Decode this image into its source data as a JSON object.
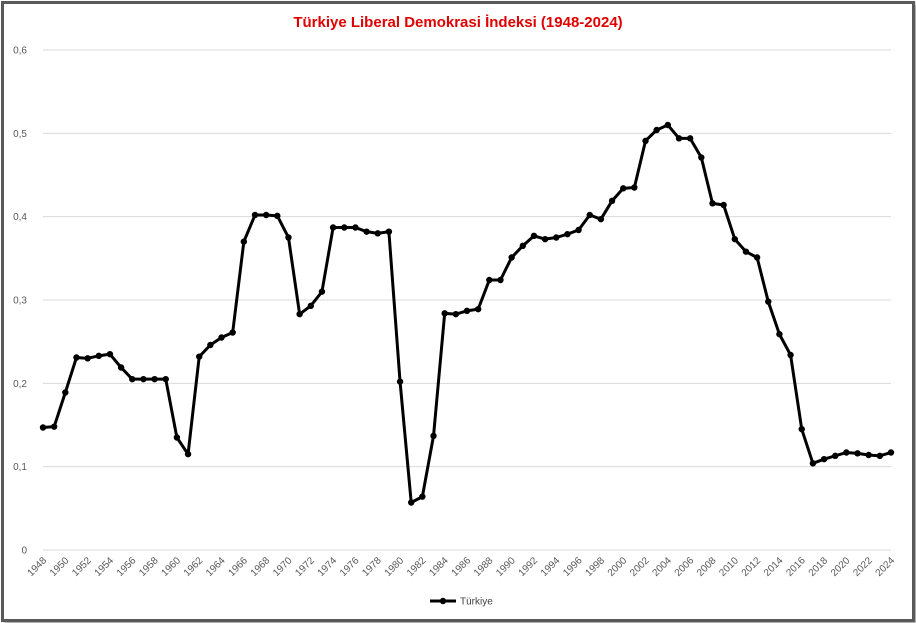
{
  "chart_data": {
    "type": "line",
    "title": "Türkiye Liberal Demokrasi İndeksi (1948-2024)",
    "xlabel": "",
    "ylabel": "",
    "ylim": [
      0,
      0.6
    ],
    "yticks": [
      "0",
      "0,1",
      "0,2",
      "0,3",
      "0,4",
      "0,5",
      "0,6"
    ],
    "xticks": [
      "1948",
      "1950",
      "1952",
      "1954",
      "1956",
      "1958",
      "1960",
      "1962",
      "1964",
      "1966",
      "1968",
      "1970",
      "1972",
      "1974",
      "1976",
      "1978",
      "1980",
      "1982",
      "1984",
      "1986",
      "1988",
      "1990",
      "1992",
      "1994",
      "1996",
      "1998",
      "2000",
      "2002",
      "2004",
      "2006",
      "2008",
      "2010",
      "2012",
      "2014",
      "2016",
      "2018",
      "2020",
      "2022",
      "2024"
    ],
    "grid": true,
    "legend_position": "bottom",
    "line_color": "#000000",
    "x": [
      1948,
      1949,
      1950,
      1951,
      1952,
      1953,
      1954,
      1955,
      1956,
      1957,
      1958,
      1959,
      1960,
      1961,
      1962,
      1963,
      1964,
      1965,
      1966,
      1967,
      1968,
      1969,
      1970,
      1971,
      1972,
      1973,
      1974,
      1975,
      1976,
      1977,
      1978,
      1979,
      1980,
      1981,
      1982,
      1983,
      1984,
      1985,
      1986,
      1987,
      1988,
      1989,
      1990,
      1991,
      1992,
      1993,
      1994,
      1995,
      1996,
      1997,
      1998,
      1999,
      2000,
      2001,
      2002,
      2003,
      2004,
      2005,
      2006,
      2007,
      2008,
      2009,
      2010,
      2011,
      2012,
      2013,
      2014,
      2015,
      2016,
      2017,
      2018,
      2019,
      2020,
      2021,
      2022,
      2023,
      2024
    ],
    "series": [
      {
        "name": "Türkiye",
        "values": [
          0.147,
          0.148,
          0.189,
          0.231,
          0.23,
          0.233,
          0.235,
          0.219,
          0.205,
          0.205,
          0.205,
          0.205,
          0.135,
          0.115,
          0.232,
          0.246,
          0.255,
          0.261,
          0.37,
          0.402,
          0.402,
          0.401,
          0.375,
          0.283,
          0.293,
          0.31,
          0.387,
          0.387,
          0.387,
          0.382,
          0.38,
          0.382,
          0.202,
          0.057,
          0.064,
          0.137,
          0.284,
          0.283,
          0.287,
          0.289,
          0.324,
          0.324,
          0.351,
          0.365,
          0.377,
          0.373,
          0.375,
          0.379,
          0.384,
          0.402,
          0.397,
          0.419,
          0.434,
          0.435,
          0.491,
          0.504,
          0.51,
          0.494,
          0.494,
          0.471,
          0.416,
          0.414,
          0.373,
          0.358,
          0.351,
          0.298,
          0.259,
          0.234,
          0.145,
          0.104,
          0.109,
          0.113,
          0.117,
          0.116,
          0.114,
          0.113,
          0.117
        ]
      }
    ]
  }
}
